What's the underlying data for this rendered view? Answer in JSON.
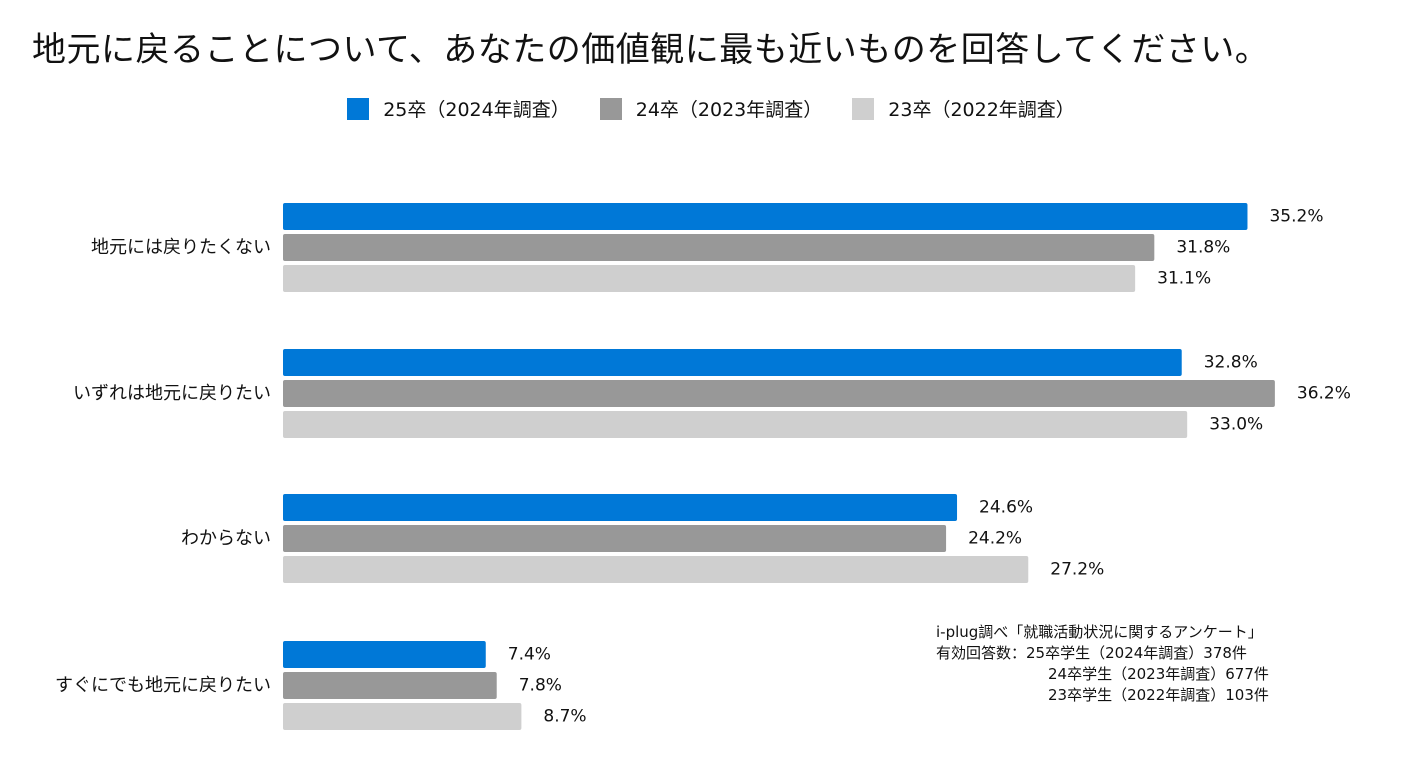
{
  "title": "地元に戻ることについて、あなたの価値観に最も近いものを回答してください。",
  "legend": [
    {
      "label": "25卒（2024年調査）",
      "color": "#0078D7"
    },
    {
      "label": "24卒（2023年調査）",
      "color": "#989898"
    },
    {
      "label": "23卒（2022年調査）",
      "color": "#CFCFCF"
    }
  ],
  "chart_data": {
    "type": "bar",
    "orientation": "horizontal",
    "title": "地元に戻ることについて、あなたの価値観に最も近いものを回答してください。",
    "unit": "%",
    "categories": [
      "地元には戻りたくない",
      "いずれは地元に戻りたい",
      "わからない",
      "すぐにでも地元に戻りたい"
    ],
    "series": [
      {
        "name": "25卒（2024年調査）",
        "color": "#0078D7",
        "values": [
          35.2,
          32.8,
          24.6,
          7.4
        ]
      },
      {
        "name": "24卒（2023年調査）",
        "color": "#989898",
        "values": [
          31.8,
          36.2,
          24.2,
          7.8
        ]
      },
      {
        "name": "23卒（2022年調査）",
        "color": "#CFCFCF",
        "values": [
          31.1,
          33.0,
          27.2,
          8.7
        ]
      }
    ],
    "xlim": [
      0,
      37
    ],
    "grid": false,
    "legend_position": "top-center"
  },
  "note": {
    "source": "i-plug調べ「就職活動状況に関するアンケート」",
    "respondents_label": "有効回答数：",
    "rows": [
      "25卒学生（2024年調査）378件",
      "24卒学生（2023年調査）677件",
      "23卒学生（2022年調査）103件"
    ]
  }
}
